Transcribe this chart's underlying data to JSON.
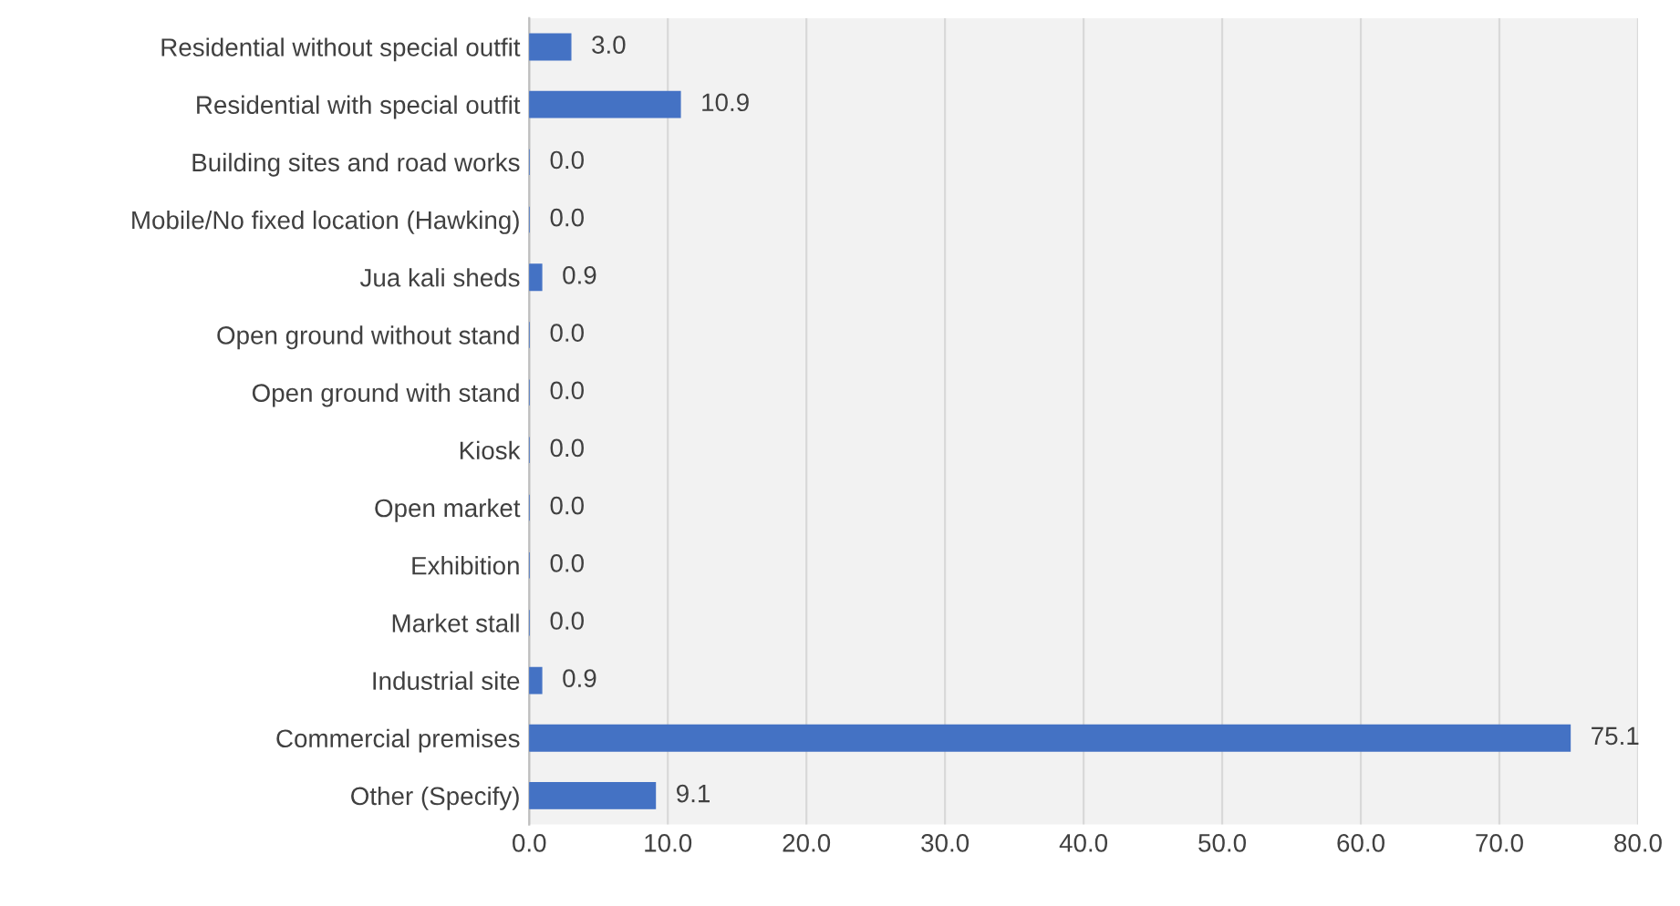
{
  "chart_data": {
    "type": "bar",
    "orientation": "horizontal",
    "categories": [
      "Residential without special outfit",
      "Residential with special outfit",
      "Building sites and road works",
      "Mobile/No fixed location (Hawking)",
      "Jua kali sheds",
      "Open ground without stand",
      "Open ground with stand",
      "Kiosk",
      "Open market",
      "Exhibition",
      "Market stall",
      "Industrial site",
      "Commercial premises",
      "Other (Specify)"
    ],
    "values": [
      3.0,
      10.9,
      0.0,
      0.0,
      0.9,
      0.0,
      0.0,
      0.0,
      0.0,
      0.0,
      0.0,
      0.9,
      75.1,
      9.1
    ],
    "value_labels": [
      "3.0",
      "10.9",
      "0.0",
      "0.0",
      "0.9",
      "0.0",
      "0.0",
      "0.0",
      "0.0",
      "0.0",
      "0.0",
      "0.9",
      "75.1",
      "9.1"
    ],
    "color": "#4472c4",
    "xlim": [
      0,
      80
    ],
    "xticks": [
      {
        "value": 0,
        "label": "0.0"
      },
      {
        "value": 10,
        "label": "10.0"
      },
      {
        "value": 20,
        "label": "20.0"
      },
      {
        "value": 30,
        "label": "30.0"
      },
      {
        "value": 40,
        "label": "40.0"
      },
      {
        "value": 50,
        "label": "50.0"
      },
      {
        "value": 60,
        "label": "60.0"
      },
      {
        "value": 70,
        "label": "70.0"
      },
      {
        "value": 80,
        "label": "80.0"
      }
    ],
    "grid": "x",
    "legend": false
  }
}
